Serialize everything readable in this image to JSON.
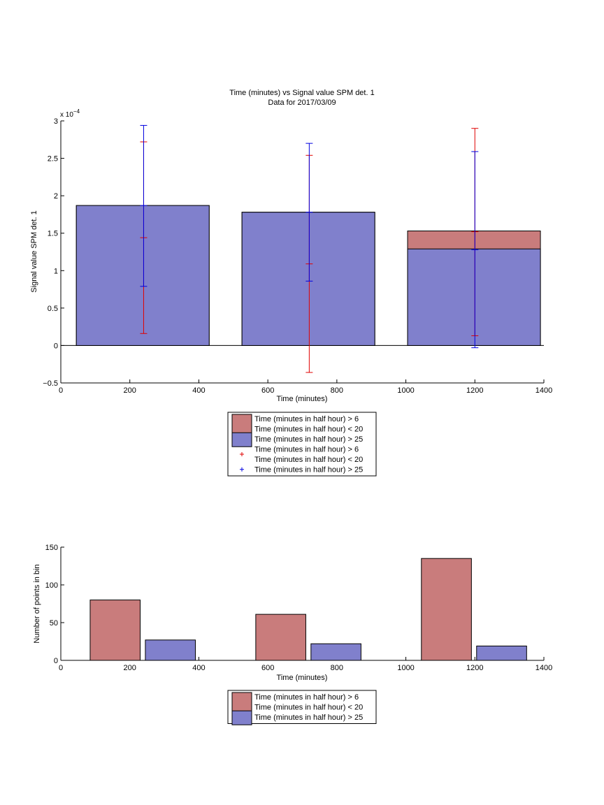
{
  "colors": {
    "red_fill": "#c97c7c",
    "blue_fill": "#8080cc",
    "red_err": "#e00000",
    "blue_err": "#0000e0",
    "axis": "#000000"
  },
  "chart_data": [
    {
      "type": "bar",
      "title": "Time (minutes) vs Signal value SPM det. 1",
      "subtitle": "Data for 2017/03/09",
      "xlabel": "Time (minutes)",
      "ylabel": "Signal value SPM det. 1",
      "y_exponent": "x 10",
      "y_exponent_power": "−4",
      "xlim": [
        0,
        1400
      ],
      "ylim": [
        -0.5,
        3
      ],
      "xticks": [
        "0",
        "200",
        "400",
        "600",
        "800",
        "1000",
        "1200",
        "1400"
      ],
      "yticks": [
        "−0.5",
        "0",
        "0.5",
        "1",
        "1.5",
        "2",
        "2.5",
        "3"
      ],
      "grid": false,
      "legend_position": "below",
      "bars": [
        {
          "x_from": 45,
          "x_to": 430,
          "red": 1.87,
          "blue": 1.87
        },
        {
          "x_from": 525,
          "x_to": 910,
          "red": 1.78,
          "blue": 1.78
        },
        {
          "x_from": 1005,
          "x_to": 1390,
          "red": 1.53,
          "blue": 1.29
        }
      ],
      "errorbars": [
        {
          "series": "red",
          "x": 240,
          "low": 0.16,
          "mid": 1.44,
          "high": 2.72
        },
        {
          "series": "blue",
          "x": 240,
          "low": 0.79,
          "mid": 1.87,
          "high": 2.94
        },
        {
          "series": "red",
          "x": 720,
          "low": -0.36,
          "mid": 1.09,
          "high": 2.54
        },
        {
          "series": "blue",
          "x": 720,
          "low": 0.86,
          "mid": 1.78,
          "high": 2.7
        },
        {
          "series": "red",
          "x": 1200,
          "low": 0.13,
          "mid": 1.52,
          "high": 2.9
        },
        {
          "series": "blue",
          "x": 1200,
          "low": -0.03,
          "mid": 1.28,
          "high": 2.59
        }
      ],
      "legend": [
        {
          "kind": "patch",
          "color": "red",
          "lines": [
            "Time (minutes in half hour) > 6",
            "Time (minutes in half hour) < 20"
          ]
        },
        {
          "kind": "patch",
          "color": "blue",
          "lines": [
            "Time (minutes in half hour) > 25"
          ]
        },
        {
          "kind": "marker",
          "color": "red",
          "lines": [
            "Time (minutes in half hour) > 6",
            "Time (minutes in half hour) < 20"
          ]
        },
        {
          "kind": "marker",
          "color": "blue",
          "lines": [
            "Time (minutes in half hour) > 25"
          ]
        }
      ]
    },
    {
      "type": "bar",
      "title": "",
      "xlabel": "Time (minutes)",
      "ylabel": "Number of points in bin",
      "xlim": [
        0,
        1400
      ],
      "ylim": [
        0,
        150
      ],
      "xticks": [
        "0",
        "200",
        "400",
        "600",
        "800",
        "1000",
        "1200",
        "1400"
      ],
      "yticks": [
        "0",
        "50",
        "100",
        "150"
      ],
      "grid": false,
      "legend_position": "below",
      "bars": [
        {
          "series": "red",
          "x_from": 85,
          "x_to": 230,
          "value": 80
        },
        {
          "series": "blue",
          "x_from": 245,
          "x_to": 390,
          "value": 27
        },
        {
          "series": "red",
          "x_from": 565,
          "x_to": 710,
          "value": 61
        },
        {
          "series": "blue",
          "x_from": 725,
          "x_to": 870,
          "value": 22
        },
        {
          "series": "red",
          "x_from": 1045,
          "x_to": 1190,
          "value": 135
        },
        {
          "series": "blue",
          "x_from": 1205,
          "x_to": 1350,
          "value": 19
        }
      ],
      "legend": [
        {
          "kind": "patch",
          "color": "red",
          "lines": [
            "Time (minutes in half hour) > 6",
            "Time (minutes in half hour) < 20"
          ]
        },
        {
          "kind": "patch",
          "color": "blue",
          "lines": [
            "Time (minutes in half hour) > 25"
          ]
        }
      ]
    }
  ]
}
